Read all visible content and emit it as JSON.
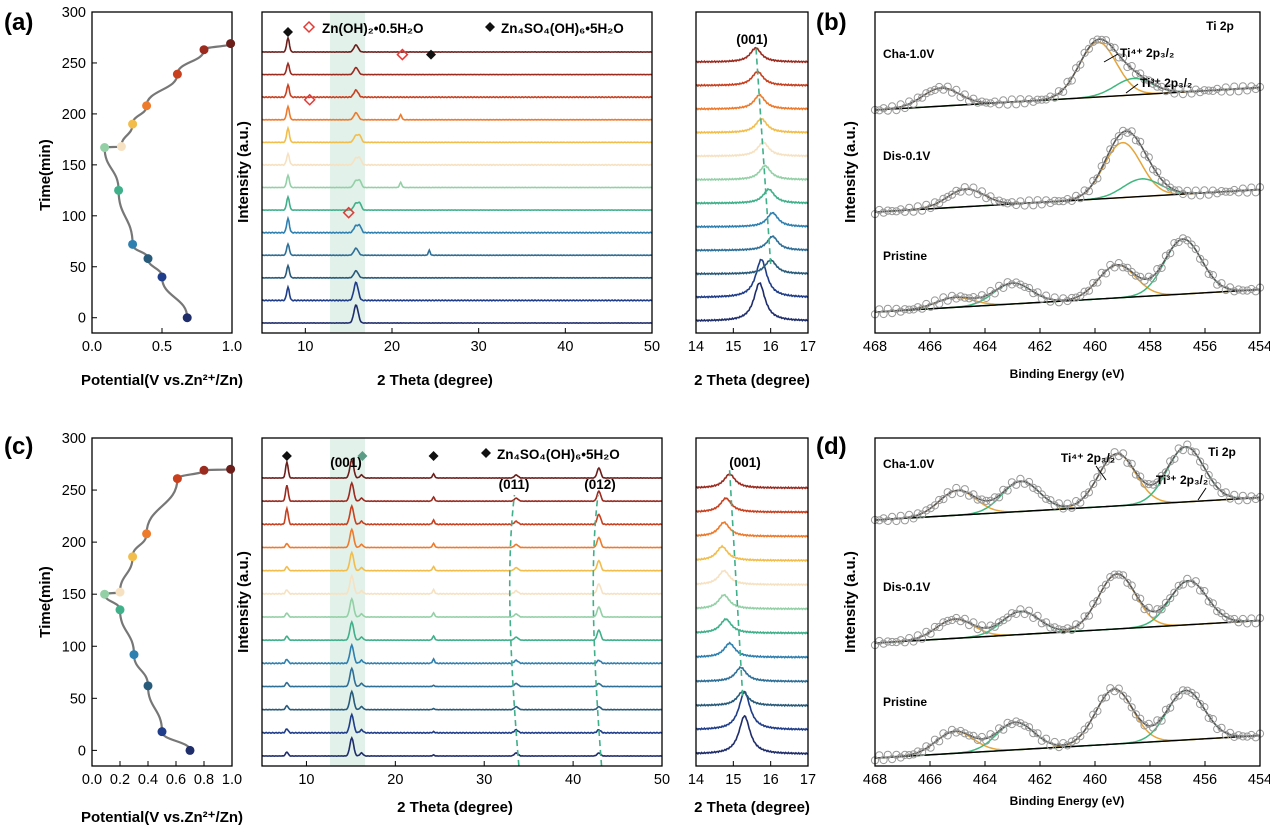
{
  "panel_letters": {
    "a": "(a)",
    "b": "(b)",
    "c": "(c)",
    "d": "(d)"
  },
  "labels": {
    "time_axis": "Time(min)",
    "intensity_axis": "Intensity (a.u.)",
    "potential_axis": "Potential(V vs.Zn²⁺/Zn)",
    "two_theta": "2 Theta (degree)",
    "binding_energy": "Binding Energy (eV)"
  },
  "annotations": {
    "a_zn_oh2": "Zn(OH)₂•0.5H₂O",
    "a_zhs": "Zn₄SO₄(OH)₆•5H₂O",
    "a_001": "(001)",
    "b_ti2p": "Ti 2p",
    "b_ti4": "Ti⁴⁺ 2p₃/₂",
    "b_ti3": "Ti³⁺ 2p₃/₂",
    "c_001": "(001)",
    "c_zhs": "Zn₄SO₄(OH)₆•5H₂O",
    "c_011": "(011)",
    "c_012": "(012)",
    "c_right_001": "(001)",
    "d_ti2p": "Ti 2p",
    "d_ti4": "Ti⁴⁺ 2p₃/₂",
    "d_ti3": "Ti³⁺ 2p₃/₂"
  },
  "colors": {
    "curve_gray": "#777777",
    "highlight": "#d8ece3",
    "fit_orange": "#e5a53a",
    "fit_green": "#3fb87f",
    "envelope": "#555555",
    "circle": "#999999",
    "baseline": "#000000",
    "zn_oh2_marker": "#e53935",
    "zhs_marker": "#111111"
  },
  "chart_data": [
    {
      "panel": "a-left",
      "type": "scatter",
      "title": "",
      "xlabel": "Potential(V vs.Zn²⁺/Zn)",
      "ylabel": "Time(min)",
      "xlim": [
        0.0,
        1.0
      ],
      "ylim": [
        -15,
        300
      ],
      "xticks": [
        "0.0",
        "0.5",
        "1.0"
      ],
      "yticks": [
        "0",
        "50",
        "100",
        "150",
        "200",
        "250",
        "300"
      ],
      "points": [
        {
          "x": 0.68,
          "y": 0,
          "color": "#1f2d6b"
        },
        {
          "x": 0.5,
          "y": 40,
          "color": "#1f3d8a"
        },
        {
          "x": 0.4,
          "y": 58,
          "color": "#285b7a"
        },
        {
          "x": 0.29,
          "y": 72,
          "color": "#2e80b0"
        },
        {
          "x": 0.19,
          "y": 125,
          "color": "#3fb08a"
        },
        {
          "x": 0.09,
          "y": 167,
          "color": "#93d0a6"
        },
        {
          "x": 0.21,
          "y": 168,
          "color": "#f6e2c2"
        },
        {
          "x": 0.29,
          "y": 190,
          "color": "#f2bd4b"
        },
        {
          "x": 0.39,
          "y": 208,
          "color": "#ee7a2c"
        },
        {
          "x": 0.61,
          "y": 239,
          "color": "#c9401f"
        },
        {
          "x": 0.8,
          "y": 263,
          "color": "#9b2a1f"
        },
        {
          "x": 0.99,
          "y": 269,
          "color": "#6b1e1a"
        }
      ]
    },
    {
      "panel": "a-middle",
      "type": "line",
      "title": "",
      "xlabel": "2 Theta (degree)",
      "ylabel": "Intensity (a.u.)",
      "xlim": [
        5,
        50
      ],
      "xticks": [
        "10",
        "20",
        "30",
        "40",
        "50"
      ],
      "highlight_band": [
        13.5,
        17.5
      ],
      "legend": [
        "Zn(OH)₂•0.5H₂O",
        "Zn₄SO₄(OH)₆•5H₂O"
      ],
      "zn_oh2_markers": [
        {
          "x": 21.2,
          "trace": 11
        },
        {
          "x": 10.5,
          "trace": 9
        },
        {
          "x": 15.0,
          "trace": 4
        }
      ],
      "zhs_markers": [
        {
          "x": 8.0,
          "trace": 12
        },
        {
          "x": 24.5,
          "trace": 11
        }
      ]
    },
    {
      "panel": "a-right",
      "type": "line",
      "title": "",
      "xlabel": "2 Theta (degree)",
      "xlim": [
        14,
        17
      ],
      "xticks": [
        "14",
        "15",
        "16",
        "17"
      ],
      "peak_label": "(001)",
      "peak_positions": [
        15.7,
        15.75,
        16.0,
        16.05,
        16.05,
        15.95,
        15.85,
        15.8,
        15.75,
        15.7,
        15.65,
        15.6
      ]
    },
    {
      "panel": "b",
      "type": "line",
      "title": "",
      "xlabel": "Binding Energy (eV)",
      "ylabel": "Intensity (a.u.)",
      "xlim": [
        468,
        454
      ],
      "xticks": [
        "468",
        "466",
        "464",
        "462",
        "460",
        "458",
        "456",
        "454"
      ],
      "series": [
        {
          "name": "Cha-1.0V",
          "peaks": [
            {
              "center": 465.6,
              "height": 0.33,
              "color": "orange"
            },
            {
              "center": 459.9,
              "height": 1.0,
              "color": "orange"
            },
            {
              "center": 458.6,
              "height": 0.3,
              "color": "green"
            }
          ]
        },
        {
          "name": "Dis-0.1V",
          "peaks": [
            {
              "center": 464.7,
              "height": 0.32,
              "color": "orange"
            },
            {
              "center": 459.0,
              "height": 1.0,
              "color": "orange"
            },
            {
              "center": 458.3,
              "height": 0.32,
              "color": "green"
            }
          ]
        },
        {
          "name": "Pristine",
          "peaks": [
            {
              "center": 465.1,
              "height": 0.18,
              "color": "orange"
            },
            {
              "center": 463.0,
              "height": 0.38,
              "color": "green"
            },
            {
              "center": 459.2,
              "height": 0.6,
              "color": "orange"
            },
            {
              "center": 456.8,
              "height": 1.0,
              "color": "green"
            }
          ]
        }
      ]
    },
    {
      "panel": "c-left",
      "type": "scatter",
      "title": "",
      "xlabel": "Potential(V vs.Zn²⁺/Zn)",
      "ylabel": "Time(min)",
      "xlim": [
        0.0,
        1.0
      ],
      "ylim": [
        -15,
        300
      ],
      "xticks": [
        "0.0",
        "0.2",
        "0.4",
        "0.6",
        "0.8",
        "1.0"
      ],
      "yticks": [
        "0",
        "50",
        "100",
        "150",
        "200",
        "250",
        "300"
      ],
      "points": [
        {
          "x": 0.7,
          "y": 0,
          "color": "#1f2d6b"
        },
        {
          "x": 0.5,
          "y": 18,
          "color": "#1f3d8a"
        },
        {
          "x": 0.4,
          "y": 62,
          "color": "#285b7a"
        },
        {
          "x": 0.3,
          "y": 92,
          "color": "#2e80b0"
        },
        {
          "x": 0.2,
          "y": 135,
          "color": "#3fb08a"
        },
        {
          "x": 0.09,
          "y": 150,
          "color": "#93d0a6"
        },
        {
          "x": 0.2,
          "y": 152,
          "color": "#f6e2c2"
        },
        {
          "x": 0.29,
          "y": 186,
          "color": "#f2bd4b"
        },
        {
          "x": 0.39,
          "y": 208,
          "color": "#ee7a2c"
        },
        {
          "x": 0.61,
          "y": 261,
          "color": "#c9401f"
        },
        {
          "x": 0.8,
          "y": 269,
          "color": "#9b2a1f"
        },
        {
          "x": 0.99,
          "y": 270,
          "color": "#6b1e1a"
        }
      ]
    },
    {
      "panel": "c-middle",
      "type": "line",
      "title": "",
      "xlabel": "2 Theta (degree)",
      "ylabel": "Intensity (a.u.)",
      "xlim": [
        5,
        50
      ],
      "xticks": [
        "10",
        "20",
        "30",
        "40",
        "50"
      ],
      "highlight_band": [
        13.5,
        17.5
      ],
      "legend": [
        "Zn₄SO₄(OH)₆•5H₂O"
      ],
      "peak_labels": [
        {
          "text": "(001)",
          "x": 15.0
        },
        {
          "text": "(011)",
          "x": 33.5
        },
        {
          "text": "(012)",
          "x": 43.0
        }
      ],
      "zhs_markers": [
        {
          "x": 7.8,
          "trace": 12
        },
        {
          "x": 24.3,
          "trace": 12
        },
        {
          "x": 16.3,
          "trace": 12
        }
      ]
    },
    {
      "panel": "c-right",
      "type": "line",
      "title": "",
      "xlabel": "2 Theta (degree)",
      "xlim": [
        14,
        17
      ],
      "xticks": [
        "14",
        "15",
        "16",
        "17"
      ],
      "peak_label": "(001)",
      "peak_positions": [
        15.3,
        15.3,
        15.25,
        15.2,
        14.9,
        14.8,
        14.75,
        14.75,
        14.7,
        14.75,
        14.8,
        14.9
      ]
    },
    {
      "panel": "d",
      "type": "line",
      "title": "",
      "xlabel": "Binding Energy (eV)",
      "ylabel": "Intensity (a.u.)",
      "xlim": [
        468,
        454
      ],
      "xticks": [
        "468",
        "466",
        "464",
        "462",
        "460",
        "458",
        "456",
        "454"
      ],
      "series": [
        {
          "name": "Cha-1.0V",
          "peaks": [
            {
              "center": 465.0,
              "height": 0.45,
              "color": "orange"
            },
            {
              "center": 462.7,
              "height": 0.55,
              "color": "green"
            },
            {
              "center": 459.2,
              "height": 0.95,
              "color": "orange"
            },
            {
              "center": 456.7,
              "height": 1.0,
              "color": "green"
            }
          ]
        },
        {
          "name": "Dis-0.1V",
          "peaks": [
            {
              "center": 465.1,
              "height": 0.35,
              "color": "orange"
            },
            {
              "center": 462.7,
              "height": 0.42,
              "color": "green"
            },
            {
              "center": 459.2,
              "height": 1.0,
              "color": "orange"
            },
            {
              "center": 456.6,
              "height": 0.8,
              "color": "green"
            }
          ]
        },
        {
          "name": "Pristine",
          "peaks": [
            {
              "center": 465.1,
              "height": 0.4,
              "color": "orange"
            },
            {
              "center": 462.9,
              "height": 0.5,
              "color": "green"
            },
            {
              "center": 459.3,
              "height": 1.0,
              "color": "orange"
            },
            {
              "center": 456.7,
              "height": 0.9,
              "color": "green"
            }
          ]
        }
      ]
    }
  ],
  "trace_colors": [
    "#1f2d6b",
    "#1f3d8a",
    "#285b7a",
    "#2e6f97",
    "#2e80b0",
    "#3fb08a",
    "#93d0a6",
    "#f6e2c2",
    "#f2bd4b",
    "#ee7a2c",
    "#c9401f",
    "#9b2a1f",
    "#6b1e1a"
  ]
}
